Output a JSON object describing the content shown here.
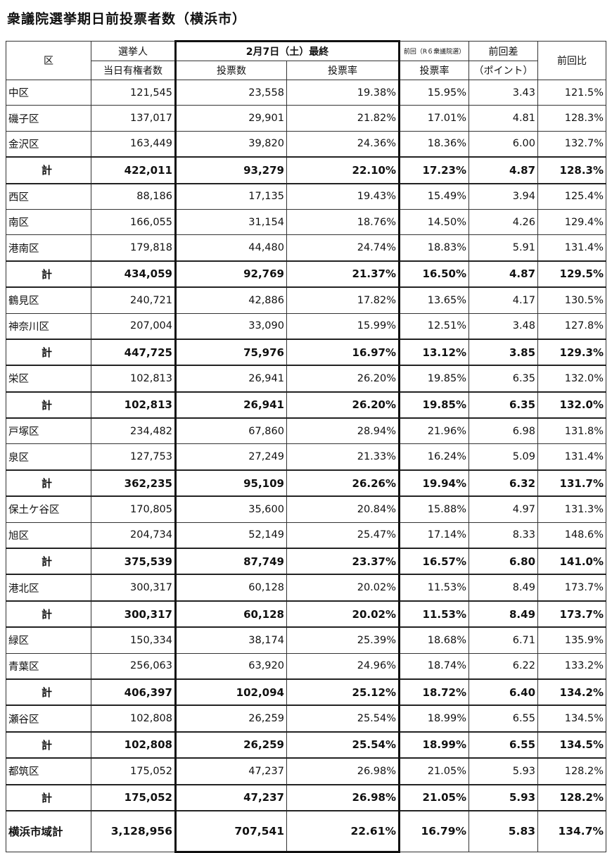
{
  "title": "衆議院選挙期日前投票者数（横浜市）",
  "header": {
    "col_ward": "区",
    "col_voters_line1": "選挙人",
    "col_voters_line2": "当日有権者数",
    "current_group": "2月7日（土）最終",
    "col_votes": "投票数",
    "col_rate": "投票率",
    "prev_group": "前回（R６衆議院選）",
    "col_prev_rate": "投票率",
    "col_diff_line1": "前回差",
    "col_diff_line2": "（ポイント）",
    "col_ratio": "前回比"
  },
  "rows": [
    {
      "type": "ward",
      "name": "中区",
      "voters": "121,545",
      "votes": "23,558",
      "rate": "19.38%",
      "prev_rate": "15.95%",
      "diff": "3.43",
      "ratio": "121.5%"
    },
    {
      "type": "ward",
      "name": "磯子区",
      "voters": "137,017",
      "votes": "29,901",
      "rate": "21.82%",
      "prev_rate": "17.01%",
      "diff": "4.81",
      "ratio": "128.3%"
    },
    {
      "type": "ward",
      "name": "金沢区",
      "voters": "163,449",
      "votes": "39,820",
      "rate": "24.36%",
      "prev_rate": "18.36%",
      "diff": "6.00",
      "ratio": "132.7%"
    },
    {
      "type": "sub",
      "name": "計",
      "voters": "422,011",
      "votes": "93,279",
      "rate": "22.10%",
      "prev_rate": "17.23%",
      "diff": "4.87",
      "ratio": "128.3%"
    },
    {
      "type": "ward",
      "name": "西区",
      "voters": "88,186",
      "votes": "17,135",
      "rate": "19.43%",
      "prev_rate": "15.49%",
      "diff": "3.94",
      "ratio": "125.4%"
    },
    {
      "type": "ward",
      "name": "南区",
      "voters": "166,055",
      "votes": "31,154",
      "rate": "18.76%",
      "prev_rate": "14.50%",
      "diff": "4.26",
      "ratio": "129.4%"
    },
    {
      "type": "ward",
      "name": "港南区",
      "voters": "179,818",
      "votes": "44,480",
      "rate": "24.74%",
      "prev_rate": "18.83%",
      "diff": "5.91",
      "ratio": "131.4%"
    },
    {
      "type": "sub",
      "name": "計",
      "voters": "434,059",
      "votes": "92,769",
      "rate": "21.37%",
      "prev_rate": "16.50%",
      "diff": "4.87",
      "ratio": "129.5%"
    },
    {
      "type": "ward",
      "name": "鶴見区",
      "voters": "240,721",
      "votes": "42,886",
      "rate": "17.82%",
      "prev_rate": "13.65%",
      "diff": "4.17",
      "ratio": "130.5%"
    },
    {
      "type": "ward",
      "name": "神奈川区",
      "voters": "207,004",
      "votes": "33,090",
      "rate": "15.99%",
      "prev_rate": "12.51%",
      "diff": "3.48",
      "ratio": "127.8%"
    },
    {
      "type": "sub",
      "name": "計",
      "voters": "447,725",
      "votes": "75,976",
      "rate": "16.97%",
      "prev_rate": "13.12%",
      "diff": "3.85",
      "ratio": "129.3%"
    },
    {
      "type": "ward",
      "name": "栄区",
      "voters": "102,813",
      "votes": "26,941",
      "rate": "26.20%",
      "prev_rate": "19.85%",
      "diff": "6.35",
      "ratio": "132.0%"
    },
    {
      "type": "sub",
      "name": "計",
      "voters": "102,813",
      "votes": "26,941",
      "rate": "26.20%",
      "prev_rate": "19.85%",
      "diff": "6.35",
      "ratio": "132.0%"
    },
    {
      "type": "ward",
      "name": "戸塚区",
      "voters": "234,482",
      "votes": "67,860",
      "rate": "28.94%",
      "prev_rate": "21.96%",
      "diff": "6.98",
      "ratio": "131.8%"
    },
    {
      "type": "ward",
      "name": "泉区",
      "voters": "127,753",
      "votes": "27,249",
      "rate": "21.33%",
      "prev_rate": "16.24%",
      "diff": "5.09",
      "ratio": "131.4%"
    },
    {
      "type": "sub",
      "name": "計",
      "voters": "362,235",
      "votes": "95,109",
      "rate": "26.26%",
      "prev_rate": "19.94%",
      "diff": "6.32",
      "ratio": "131.7%"
    },
    {
      "type": "ward",
      "name": "保土ケ谷区",
      "voters": "170,805",
      "votes": "35,600",
      "rate": "20.84%",
      "prev_rate": "15.88%",
      "diff": "4.97",
      "ratio": "131.3%"
    },
    {
      "type": "ward",
      "name": "旭区",
      "voters": "204,734",
      "votes": "52,149",
      "rate": "25.47%",
      "prev_rate": "17.14%",
      "diff": "8.33",
      "ratio": "148.6%"
    },
    {
      "type": "sub",
      "name": "計",
      "voters": "375,539",
      "votes": "87,749",
      "rate": "23.37%",
      "prev_rate": "16.57%",
      "diff": "6.80",
      "ratio": "141.0%"
    },
    {
      "type": "ward",
      "name": "港北区",
      "voters": "300,317",
      "votes": "60,128",
      "rate": "20.02%",
      "prev_rate": "11.53%",
      "diff": "8.49",
      "ratio": "173.7%"
    },
    {
      "type": "sub",
      "name": "計",
      "voters": "300,317",
      "votes": "60,128",
      "rate": "20.02%",
      "prev_rate": "11.53%",
      "diff": "8.49",
      "ratio": "173.7%"
    },
    {
      "type": "ward",
      "name": "緑区",
      "voters": "150,334",
      "votes": "38,174",
      "rate": "25.39%",
      "prev_rate": "18.68%",
      "diff": "6.71",
      "ratio": "135.9%"
    },
    {
      "type": "ward",
      "name": "青葉区",
      "voters": "256,063",
      "votes": "63,920",
      "rate": "24.96%",
      "prev_rate": "18.74%",
      "diff": "6.22",
      "ratio": "133.2%"
    },
    {
      "type": "sub",
      "name": "計",
      "voters": "406,397",
      "votes": "102,094",
      "rate": "25.12%",
      "prev_rate": "18.72%",
      "diff": "6.40",
      "ratio": "134.2%"
    },
    {
      "type": "ward",
      "name": "瀬谷区",
      "voters": "102,808",
      "votes": "26,259",
      "rate": "25.54%",
      "prev_rate": "18.99%",
      "diff": "6.55",
      "ratio": "134.5%"
    },
    {
      "type": "sub",
      "name": "計",
      "voters": "102,808",
      "votes": "26,259",
      "rate": "25.54%",
      "prev_rate": "18.99%",
      "diff": "6.55",
      "ratio": "134.5%"
    },
    {
      "type": "ward",
      "name": "都筑区",
      "voters": "175,052",
      "votes": "47,237",
      "rate": "26.98%",
      "prev_rate": "21.05%",
      "diff": "5.93",
      "ratio": "128.2%"
    },
    {
      "type": "sub",
      "name": "計",
      "voters": "175,052",
      "votes": "47,237",
      "rate": "26.98%",
      "prev_rate": "21.05%",
      "diff": "5.93",
      "ratio": "128.2%"
    },
    {
      "type": "grand",
      "name": "横浜市域計",
      "voters": "3,128,956",
      "votes": "707,541",
      "rate": "22.61%",
      "prev_rate": "16.79%",
      "diff": "5.83",
      "ratio": "134.7%"
    }
  ]
}
